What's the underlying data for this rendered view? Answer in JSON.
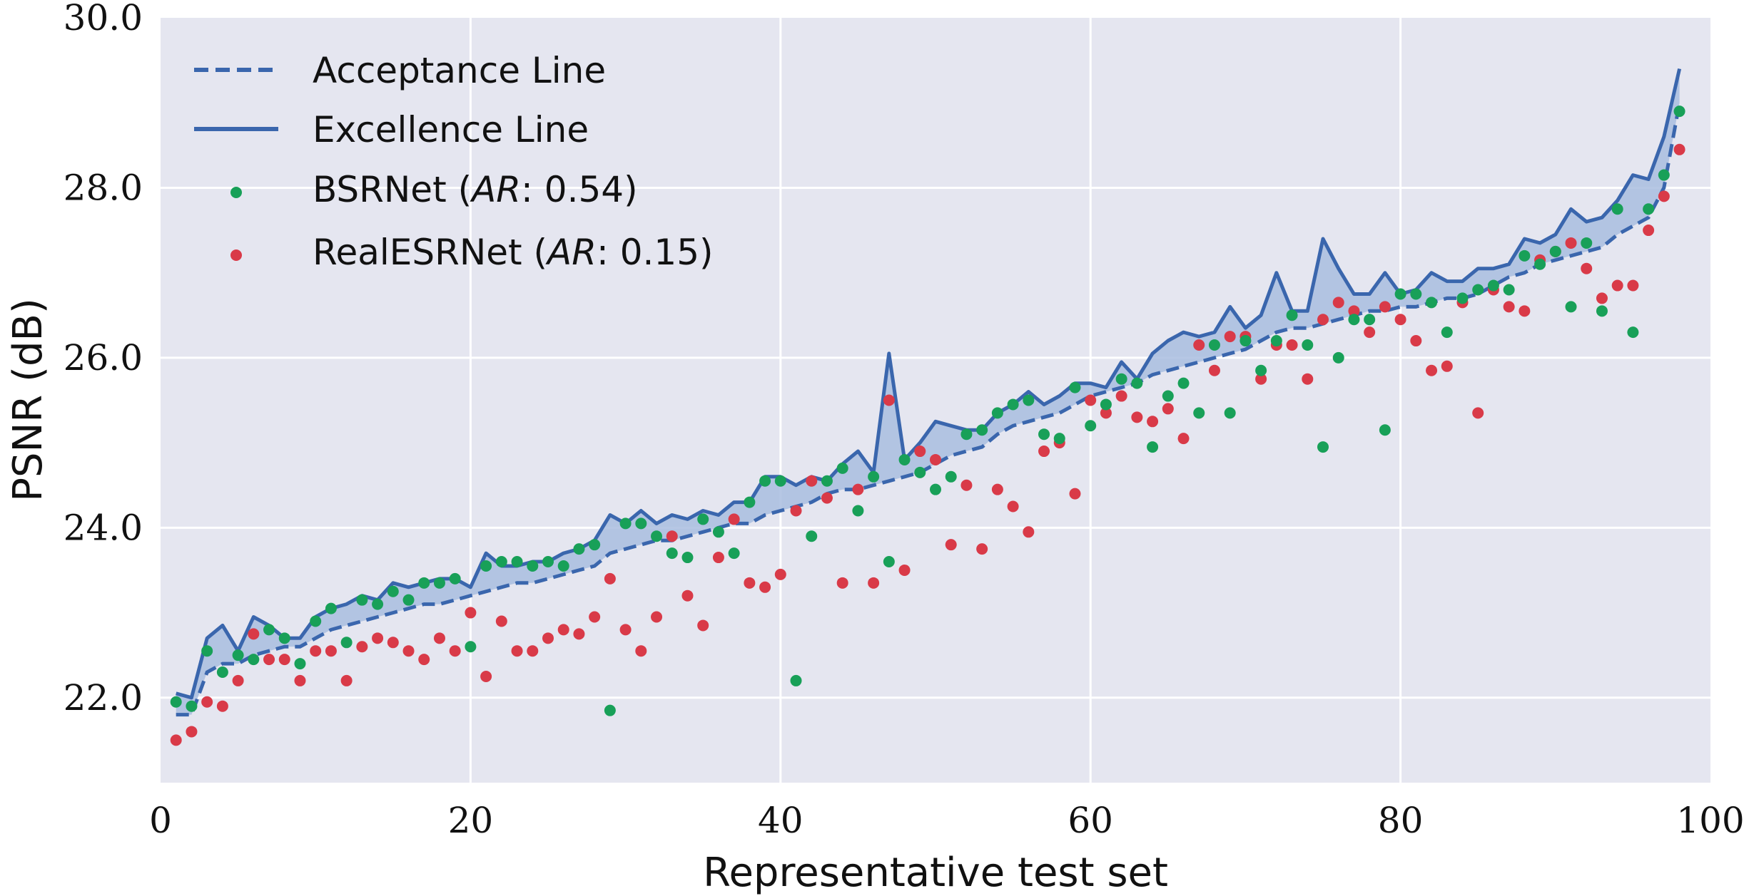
{
  "chart_data": {
    "type": "line",
    "xlabel": "Representative test set",
    "ylabel": "PSNR (dB)",
    "xlim": [
      0,
      100
    ],
    "ylim": [
      21.0,
      30.0
    ],
    "xticks": [
      0,
      20,
      40,
      60,
      80,
      100
    ],
    "yticks": [
      22.0,
      24.0,
      26.0,
      28.0,
      30.0
    ],
    "ytick_labels": [
      "22.0",
      "24.0",
      "26.0",
      "28.0",
      "30.0"
    ],
    "grid": true,
    "legend_position": "top-left",
    "colors": {
      "background": "#e5e6f0",
      "grid": "#ffffff",
      "line": "#3a66ad",
      "fill": "#a9bddf",
      "bsrnet": "#18a058",
      "realesrnet": "#d93a48"
    },
    "x": [
      1,
      2,
      3,
      4,
      5,
      6,
      7,
      8,
      9,
      10,
      11,
      12,
      13,
      14,
      15,
      16,
      17,
      18,
      19,
      20,
      21,
      22,
      23,
      24,
      25,
      26,
      27,
      28,
      29,
      30,
      31,
      32,
      33,
      34,
      35,
      36,
      37,
      38,
      39,
      40,
      41,
      42,
      43,
      44,
      45,
      46,
      47,
      48,
      49,
      50,
      51,
      52,
      53,
      54,
      55,
      56,
      57,
      58,
      59,
      60,
      61,
      62,
      63,
      64,
      65,
      66,
      67,
      68,
      69,
      70,
      71,
      72,
      73,
      74,
      75,
      76,
      77,
      78,
      79,
      80,
      81,
      82,
      83,
      84,
      85,
      86,
      87,
      88,
      89,
      90,
      91,
      92,
      93,
      94,
      95,
      96,
      97,
      98
    ],
    "series": [
      {
        "name": "Acceptance Line",
        "style": "dashed",
        "values": [
          21.8,
          21.8,
          22.3,
          22.4,
          22.4,
          22.5,
          22.55,
          22.6,
          22.6,
          22.7,
          22.8,
          22.85,
          22.9,
          22.95,
          23.0,
          23.05,
          23.1,
          23.1,
          23.15,
          23.2,
          23.25,
          23.3,
          23.35,
          23.35,
          23.4,
          23.45,
          23.5,
          23.55,
          23.7,
          23.75,
          23.8,
          23.85,
          23.85,
          23.9,
          23.95,
          24.0,
          24.05,
          24.05,
          24.15,
          24.2,
          24.25,
          24.3,
          24.4,
          24.45,
          24.45,
          24.5,
          24.55,
          24.6,
          24.65,
          24.75,
          24.85,
          24.9,
          24.95,
          25.1,
          25.2,
          25.25,
          25.3,
          25.35,
          25.45,
          25.55,
          25.6,
          25.65,
          25.7,
          25.8,
          25.85,
          25.9,
          25.95,
          26.0,
          26.05,
          26.1,
          26.2,
          26.3,
          26.35,
          26.35,
          26.4,
          26.45,
          26.5,
          26.55,
          26.55,
          26.6,
          26.6,
          26.65,
          26.7,
          26.7,
          26.75,
          26.85,
          26.95,
          27.0,
          27.1,
          27.15,
          27.2,
          27.25,
          27.3,
          27.45,
          27.55,
          27.65,
          28.0,
          29.0
        ]
      },
      {
        "name": "Excellence Line",
        "style": "solid",
        "values": [
          22.05,
          22.0,
          22.7,
          22.85,
          22.55,
          22.95,
          22.85,
          22.7,
          22.7,
          22.95,
          23.05,
          23.1,
          23.2,
          23.15,
          23.35,
          23.3,
          23.35,
          23.4,
          23.4,
          23.3,
          23.7,
          23.55,
          23.55,
          23.6,
          23.6,
          23.7,
          23.75,
          23.85,
          24.15,
          24.05,
          24.2,
          24.05,
          24.15,
          24.1,
          24.2,
          24.15,
          24.3,
          24.3,
          24.6,
          24.6,
          24.5,
          24.6,
          24.55,
          24.75,
          24.9,
          24.65,
          26.05,
          24.8,
          25.0,
          25.25,
          25.2,
          25.15,
          25.15,
          25.35,
          25.45,
          25.6,
          25.45,
          25.55,
          25.7,
          25.7,
          25.65,
          25.95,
          25.75,
          26.05,
          26.2,
          26.3,
          26.25,
          26.3,
          26.6,
          26.35,
          26.5,
          27.0,
          26.55,
          26.55,
          27.4,
          27.05,
          26.75,
          26.75,
          27.0,
          26.75,
          26.8,
          27.0,
          26.9,
          26.9,
          27.05,
          27.05,
          27.1,
          27.4,
          27.35,
          27.45,
          27.75,
          27.6,
          27.65,
          27.85,
          28.15,
          28.1,
          28.6,
          29.4
        ]
      },
      {
        "name": "BSRNet (AR: 0.54)",
        "name_parts": [
          "BSRNet (",
          "AR",
          ": 0.54)"
        ],
        "style": "points",
        "values": [
          21.95,
          21.9,
          22.55,
          22.3,
          22.5,
          22.45,
          22.8,
          22.7,
          22.4,
          22.9,
          23.05,
          22.65,
          23.15,
          23.1,
          23.25,
          23.15,
          23.35,
          23.35,
          23.4,
          22.6,
          23.55,
          23.6,
          23.6,
          23.55,
          23.6,
          23.55,
          23.75,
          23.8,
          21.85,
          24.05,
          24.05,
          23.9,
          23.7,
          23.65,
          24.1,
          23.95,
          23.7,
          24.3,
          24.55,
          24.55,
          22.2,
          23.9,
          24.55,
          24.7,
          24.2,
          24.6,
          23.6,
          24.8,
          24.65,
          24.45,
          24.6,
          25.1,
          25.15,
          25.35,
          25.45,
          25.5,
          25.1,
          25.05,
          25.65,
          25.2,
          25.45,
          25.75,
          25.7,
          24.95,
          25.55,
          25.7,
          25.35,
          26.15,
          25.35,
          26.2,
          25.85,
          26.2,
          26.5,
          26.15,
          24.95,
          26.0,
          26.45,
          26.45,
          25.15,
          26.75,
          26.75,
          26.65,
          26.3,
          26.7,
          26.8,
          26.85,
          26.8,
          27.2,
          27.1,
          27.25,
          26.6,
          27.35,
          26.55,
          27.75,
          26.3,
          27.75,
          28.15,
          28.9
        ]
      },
      {
        "name": "RealESRNet (AR: 0.15)",
        "name_parts": [
          "RealESRNet (",
          "AR",
          ": 0.15)"
        ],
        "style": "points",
        "values": [
          21.5,
          21.6,
          21.95,
          21.9,
          22.2,
          22.75,
          22.45,
          22.45,
          22.2,
          22.55,
          22.55,
          22.2,
          22.6,
          22.7,
          22.65,
          22.55,
          22.45,
          22.7,
          22.55,
          23.0,
          22.25,
          22.9,
          22.55,
          22.55,
          22.7,
          22.8,
          22.75,
          22.95,
          23.4,
          22.8,
          22.55,
          22.95,
          23.9,
          23.2,
          22.85,
          23.65,
          24.1,
          23.35,
          23.3,
          23.45,
          24.2,
          24.55,
          24.35,
          23.35,
          24.45,
          23.35,
          25.5,
          23.5,
          24.9,
          24.8,
          23.8,
          24.5,
          23.75,
          24.45,
          24.25,
          23.95,
          24.9,
          25.0,
          24.4,
          25.5,
          25.35,
          25.55,
          25.3,
          25.25,
          25.4,
          25.05,
          26.15,
          25.85,
          26.25,
          26.25,
          25.75,
          26.15,
          26.15,
          25.75,
          26.45,
          26.65,
          26.55,
          26.3,
          26.6,
          26.45,
          26.2,
          25.85,
          25.9,
          26.65,
          25.35,
          26.8,
          26.6,
          26.55,
          27.15,
          27.25,
          27.35,
          27.05,
          26.7,
          26.85,
          26.85,
          27.5,
          27.9,
          28.45
        ]
      }
    ]
  }
}
